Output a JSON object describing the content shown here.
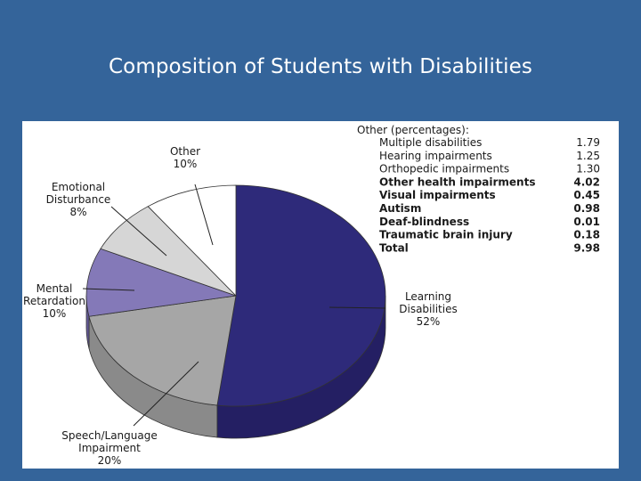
{
  "slide": {
    "title": "Composition of Students with Disabilities",
    "background": "#34649a"
  },
  "chart_data": {
    "type": "pie",
    "style": "3d",
    "title": "",
    "slices": [
      {
        "label_lines": [
          "Learning",
          "Disabilities",
          "52%"
        ],
        "value": 52,
        "color": "#2e2a7a",
        "side_color": "#241f63"
      },
      {
        "label_lines": [
          "Speech/Language",
          "Impairment",
          "20%"
        ],
        "value": 20,
        "color": "#a6a6a6",
        "side_color": "#8a8a8a"
      },
      {
        "label_lines": [
          "Mental",
          "Retardation",
          "10%"
        ],
        "value": 10,
        "color": "#8479b8",
        "side_color": "#655a99"
      },
      {
        "label_lines": [
          "Emotional",
          "Disturbance",
          "8%"
        ],
        "value": 8,
        "color": "#d6d6d6",
        "side_color": "#bcbcbc"
      },
      {
        "label_lines": [
          "Other",
          "10%"
        ],
        "value": 10,
        "color": "#ffffff",
        "side_color": "#e8e8e8"
      }
    ],
    "other_table": {
      "heading": "Other (percentages):",
      "rows": [
        {
          "name": "Multiple disabilities",
          "value": "1.79",
          "bold": false
        },
        {
          "name": "Hearing impairments",
          "value": "1.25",
          "bold": false
        },
        {
          "name": "Orthopedic impairments",
          "value": "1.30",
          "bold": false
        },
        {
          "name": "Other health impairments",
          "value": "4.02",
          "bold": true
        },
        {
          "name": "Visual impairments",
          "value": "0.45",
          "bold": true
        },
        {
          "name": "Autism",
          "value": "0.98",
          "bold": true
        },
        {
          "name": "Deaf-blindness",
          "value": "0.01",
          "bold": true
        },
        {
          "name": "Traumatic brain injury",
          "value": "0.18",
          "bold": true
        },
        {
          "name": "Total",
          "value": "9.98",
          "bold": true
        }
      ]
    }
  }
}
